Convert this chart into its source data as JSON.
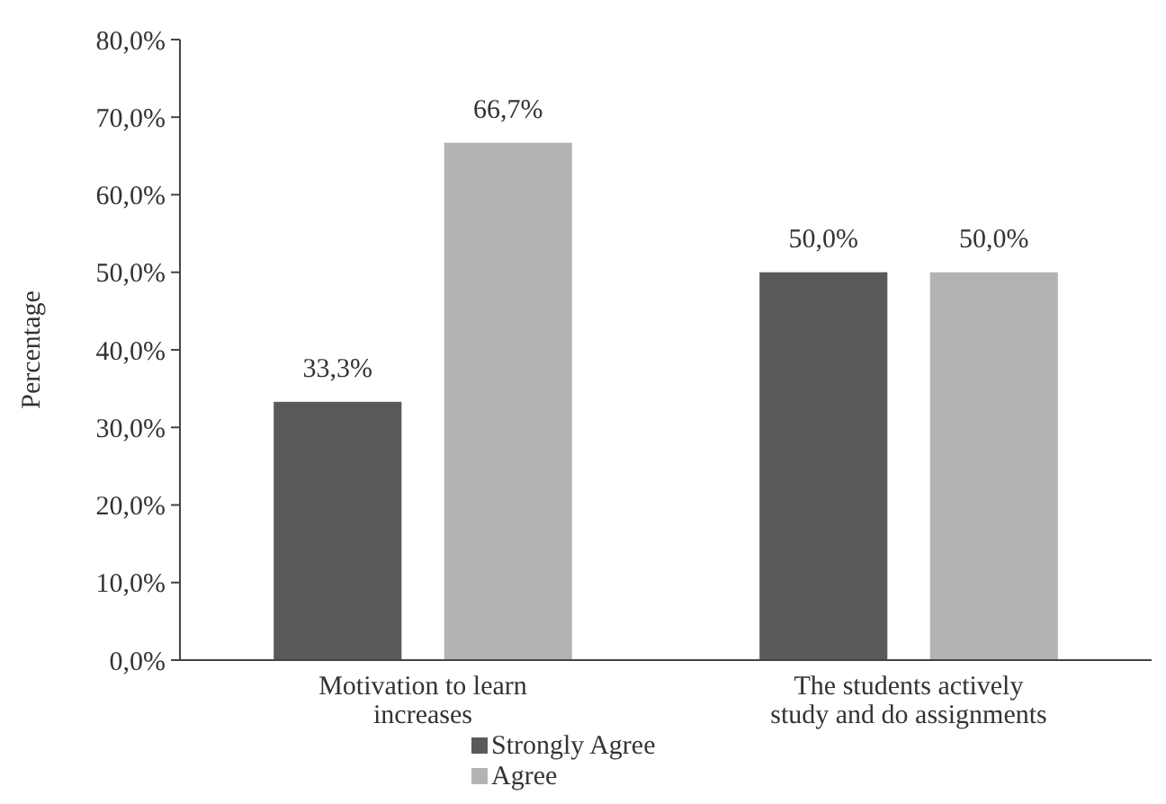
{
  "chart_data": {
    "type": "bar",
    "ylabel": "Percentage",
    "categories": [
      "Motivation to learn increases",
      "The students actively study and do assignments"
    ],
    "series": [
      {
        "name": "Strongly Agree",
        "color": "#595959",
        "values": [
          33.3,
          50.0
        ],
        "value_labels": [
          "33,3%",
          "50,0%"
        ]
      },
      {
        "name": "Agree",
        "color": "#b3b3b3",
        "values": [
          66.7,
          50.0
        ],
        "value_labels": [
          "66,7%",
          "50,0%"
        ]
      }
    ],
    "ylim": [
      0,
      80
    ],
    "yticks": [
      {
        "value": 0,
        "label": "0,0%"
      },
      {
        "value": 10,
        "label": "10,0%"
      },
      {
        "value": 20,
        "label": "20,0%"
      },
      {
        "value": 30,
        "label": "30,0%"
      },
      {
        "value": 40,
        "label": "40,0%"
      },
      {
        "value": 50,
        "label": "50,0%"
      },
      {
        "value": 60,
        "label": "60,0%"
      },
      {
        "value": 70,
        "label": "70,0%"
      },
      {
        "value": 80,
        "label": "80,0%"
      }
    ],
    "grid": false,
    "legend": "bottom"
  }
}
